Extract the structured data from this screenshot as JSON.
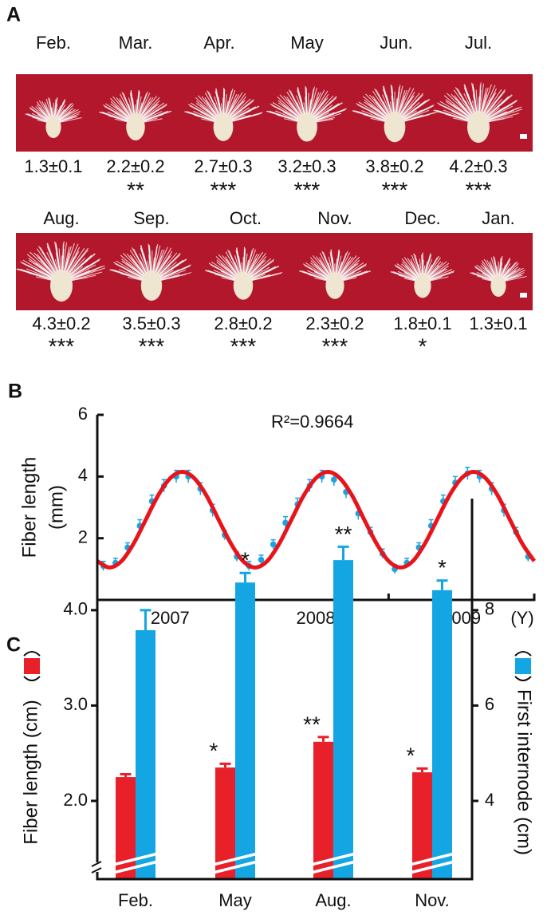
{
  "panel_a": {
    "label": "A",
    "rows": [
      {
        "months": [
          "Feb.",
          "Mar.",
          "Apr.",
          "May",
          "Jun.",
          "Jul."
        ],
        "values": [
          "1.3±0.1",
          "2.2±0.2",
          "2.7±0.3",
          "3.2±0.3",
          "3.8±0.2",
          "4.2±0.3"
        ],
        "stars": [
          null,
          "**",
          "***",
          "***",
          "***",
          "***"
        ]
      },
      {
        "months": [
          "Aug.",
          "Sep.",
          "Oct.",
          "Nov.",
          "Dec.",
          "Jan."
        ],
        "values": [
          "4.3±0.2",
          "3.5±0.3",
          "2.8±0.2",
          "2.3±0.2",
          "1.8±0.1",
          "1.3±0.1"
        ],
        "stars": [
          "***",
          "***",
          "***",
          "***",
          "*",
          null
        ]
      }
    ]
  },
  "chart_data": [
    {
      "panel_label": "B",
      "type": "line",
      "annotation": "R²=0.9664",
      "y_label_lines": [
        "Fiber length",
        "(mm)"
      ],
      "x_unit": "(Y)",
      "xlim": [
        2007,
        2010
      ],
      "ylim": [
        0,
        6
      ],
      "yticks": [
        2,
        4,
        6
      ],
      "xticks": [
        {
          "value": 2007.5,
          "label": "2007"
        },
        {
          "value": 2008.5,
          "label": "2008"
        },
        {
          "value": 2009.5,
          "label": "2009"
        }
      ],
      "x_boundaries": [
        2008,
        2009
      ],
      "series": [
        {
          "color": "#e8141c",
          "x": [
            2007,
            2007.083,
            2007.167,
            2007.25,
            2007.333,
            2007.417,
            2007.5,
            2007.583,
            2007.667,
            2007.75,
            2007.833,
            2007.917,
            2008,
            2008.083,
            2008.167,
            2008.25,
            2008.333,
            2008.417,
            2008.5,
            2008.583,
            2008.667,
            2008.75,
            2008.833,
            2008.917,
            2009,
            2009.083,
            2009.167,
            2009.25,
            2009.333,
            2009.417,
            2009.5,
            2009.583,
            2009.667,
            2009.75,
            2009.833,
            2009.917,
            2010
          ],
          "values": [
            1.26,
            1.05,
            1.26,
            1.83,
            2.6,
            3.38,
            3.94,
            4.15,
            3.94,
            3.38,
            2.6,
            1.83,
            1.26,
            1.05,
            1.26,
            1.83,
            2.6,
            3.38,
            3.94,
            4.15,
            3.94,
            3.38,
            2.6,
            1.83,
            1.26,
            1.05,
            1.26,
            1.83,
            2.6,
            3.38,
            3.94,
            4.15,
            3.94,
            3.38,
            2.6,
            1.83,
            1.26
          ]
        },
        {
          "color": "#1aa3e0",
          "marker": "point",
          "x": [
            2007.042,
            2007.125,
            2007.208,
            2007.292,
            2007.375,
            2007.458,
            2007.542,
            2007.625,
            2007.708,
            2007.792,
            2007.875,
            2007.958,
            2008.042,
            2008.125,
            2008.208,
            2008.292,
            2008.375,
            2008.458,
            2008.542,
            2008.625,
            2008.708,
            2008.792,
            2008.875,
            2008.958,
            2009.042,
            2009.125,
            2009.208,
            2009.292,
            2009.375,
            2009.458,
            2009.542,
            2009.625,
            2009.708,
            2009.792,
            2009.875,
            2009.958
          ],
          "values": [
            1.1,
            1.2,
            1.7,
            2.4,
            3.2,
            3.7,
            4.0,
            4.0,
            3.6,
            2.9,
            2.1,
            1.4,
            1.1,
            1.3,
            1.8,
            2.5,
            3.1,
            3.7,
            4.0,
            3.9,
            3.5,
            2.8,
            2.2,
            1.5,
            1.0,
            1.2,
            1.7,
            2.4,
            3.2,
            3.8,
            4.1,
            4.0,
            3.6,
            2.9,
            2.2,
            1.4
          ],
          "errors": [
            0.15,
            0.15,
            0.15,
            0.2,
            0.2,
            0.2,
            0.2,
            0.2,
            0.2,
            0.2,
            0.15,
            0.15,
            0.15,
            0.15,
            0.15,
            0.2,
            0.2,
            0.2,
            0.2,
            0.2,
            0.2,
            0.2,
            0.15,
            0.15,
            0.15,
            0.15,
            0.15,
            0.2,
            0.2,
            0.2,
            0.2,
            0.2,
            0.2,
            0.2,
            0.15,
            0.15
          ]
        }
      ]
    },
    {
      "panel_label": "C",
      "type": "bar",
      "categories": [
        "Feb.",
        "May",
        "Aug.",
        "Nov."
      ],
      "y_label": "Fiber length (cm)",
      "y2_label": "First internode (cm)",
      "ylim": [
        1.18,
        5.17
      ],
      "yticks": [
        {
          "value": 2,
          "label": "2.0"
        },
        {
          "value": 3,
          "label": "3.0"
        },
        {
          "value": 4,
          "label": "4.0"
        }
      ],
      "y2lim": [
        2.36,
        10.34
      ],
      "y2ticks": [
        4,
        6,
        8
      ],
      "axis_break": true,
      "series": [
        {
          "color": "#e8202a",
          "values": [
            2.25,
            2.35,
            2.62,
            2.3
          ],
          "errors": [
            0.03,
            0.04,
            0.05,
            0.04
          ],
          "stars": [
            null,
            "*",
            "**",
            "*"
          ]
        },
        {
          "color": "#14a6e3",
          "axis": "y2",
          "values": [
            7.58,
            8.58,
            9.05,
            8.42
          ],
          "errors": [
            0.42,
            0.2,
            0.28,
            0.2
          ],
          "stars": [
            null,
            "*",
            "**",
            "*"
          ]
        }
      ]
    }
  ]
}
